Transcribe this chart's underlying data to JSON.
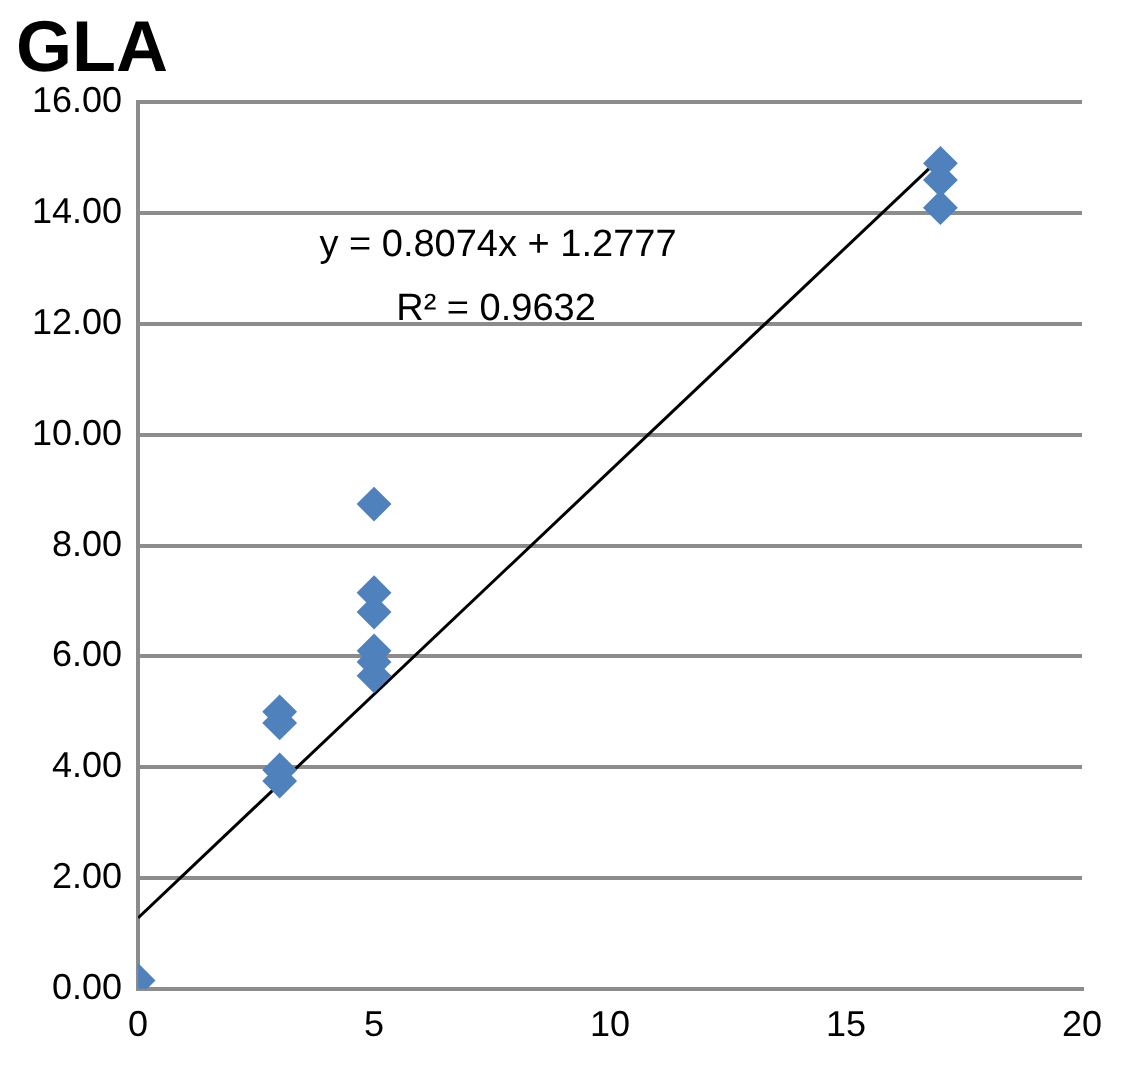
{
  "chart_data": {
    "type": "scatter",
    "title": "GLA",
    "annotations": [
      "y = 0.8074x + 1.2777",
      "R² = 0.9632"
    ],
    "series": [
      {
        "type": "scatter",
        "color": "#4f81bd",
        "x": [
          0,
          3,
          3,
          3,
          3,
          5,
          5,
          5,
          5,
          5,
          5,
          17,
          17,
          17
        ],
        "values": [
          0.15,
          5.0,
          4.8,
          3.95,
          3.75,
          8.75,
          7.15,
          6.8,
          6.1,
          5.9,
          5.65,
          14.9,
          14.6,
          14.1
        ]
      },
      {
        "type": "line",
        "marker": "none",
        "color": "#000000",
        "x": [
          0,
          17
        ],
        "values": [
          1.28,
          15.0
        ]
      }
    ],
    "marker": "diamond",
    "grid": "y",
    "legend": false,
    "xlim": [
      0,
      20
    ],
    "xticks": [
      0,
      5,
      10,
      15,
      20
    ],
    "ylim": [
      0,
      16
    ],
    "yticks": [
      {
        "value": 0,
        "label": "0.00"
      },
      {
        "value": 2,
        "label": "2.00"
      },
      {
        "value": 4,
        "label": "4.00"
      },
      {
        "value": 6,
        "label": "6.00"
      },
      {
        "value": 8,
        "label": "8.00"
      },
      {
        "value": 10,
        "label": "10.00"
      },
      {
        "value": 12,
        "label": "12.00"
      },
      {
        "value": 14,
        "label": "14.00"
      },
      {
        "value": 16,
        "label": "16.00"
      }
    ]
  }
}
